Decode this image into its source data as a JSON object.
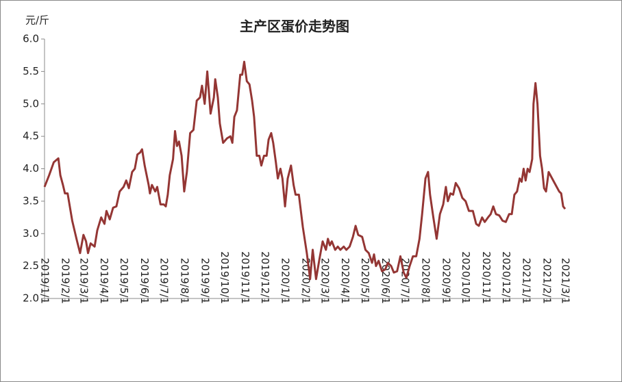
{
  "chart_data": {
    "type": "line",
    "title": "主产区蛋价走势图",
    "y_label": "元/斤",
    "x": [
      "2019/1/1",
      "2019/1/8",
      "2019/1/15",
      "2019/1/22",
      "2019/1/25",
      "2019/1/29",
      "2019/2/1",
      "2019/2/5",
      "2019/2/12",
      "2019/2/19",
      "2019/2/24",
      "2019/3/1",
      "2019/3/5",
      "2019/3/8",
      "2019/3/12",
      "2019/3/18",
      "2019/3/22",
      "2019/3/28",
      "2019/4/2",
      "2019/4/5",
      "2019/4/10",
      "2019/4/15",
      "2019/4/20",
      "2019/4/25",
      "2019/5/1",
      "2019/5/5",
      "2019/5/9",
      "2019/5/14",
      "2019/5/18",
      "2019/5/22",
      "2019/5/26",
      "2019/5/29",
      "2019/6/2",
      "2019/6/8",
      "2019/6/10",
      "2019/6/13",
      "2019/6/18",
      "2019/6/21",
      "2019/6/26",
      "2019/7/1",
      "2019/7/4",
      "2019/7/7",
      "2019/7/10",
      "2019/7/15",
      "2019/7/18",
      "2019/7/21",
      "2019/7/24",
      "2019/7/28",
      "2019/8/1",
      "2019/8/5",
      "2019/8/10",
      "2019/8/15",
      "2019/8/20",
      "2019/8/25",
      "2019/8/28",
      "2019/9/1",
      "2019/9/5",
      "2019/9/10",
      "2019/9/15",
      "2019/9/17",
      "2019/9/21",
      "2019/9/24",
      "2019/9/29",
      "2019/10/5",
      "2019/10/10",
      "2019/10/13",
      "2019/10/16",
      "2019/10/20",
      "2019/10/25",
      "2019/10/28",
      "2019/10/31",
      "2019/11/4",
      "2019/11/8",
      "2019/11/12",
      "2019/11/15",
      "2019/11/19",
      "2019/11/23",
      "2019/11/26",
      "2019/11/30",
      "2019/12/4",
      "2019/12/7",
      "2019/12/11",
      "2019/12/14",
      "2019/12/18",
      "2019/12/21",
      "2019/12/25",
      "2019/12/28",
      "2020/1/1",
      "2020/1/5",
      "2020/1/10",
      "2020/1/14",
      "2020/1/17",
      "2020/1/22",
      "2020/1/28",
      "2020/2/3",
      "2020/2/8",
      "2020/2/12",
      "2020/2/17",
      "2020/2/22",
      "2020/2/27",
      "2020/3/3",
      "2020/3/6",
      "2020/3/9",
      "2020/3/12",
      "2020/3/17",
      "2020/3/21",
      "2020/3/25",
      "2020/3/30",
      "2020/4/3",
      "2020/4/8",
      "2020/4/13",
      "2020/4/17",
      "2020/4/21",
      "2020/4/27",
      "2020/5/2",
      "2020/5/7",
      "2020/5/12",
      "2020/5/15",
      "2020/5/18",
      "2020/5/22",
      "2020/5/27",
      "2020/6/1",
      "2020/6/5",
      "2020/6/10",
      "2020/6/14",
      "2020/6/19",
      "2020/6/24",
      "2020/6/29",
      "2020/7/3",
      "2020/7/8",
      "2020/7/13",
      "2020/7/18",
      "2020/7/23",
      "2020/7/27",
      "2020/8/1",
      "2020/8/5",
      "2020/8/8",
      "2020/8/13",
      "2020/8/18",
      "2020/8/23",
      "2020/8/28",
      "2020/9/1",
      "2020/9/4",
      "2020/9/8",
      "2020/9/12",
      "2020/9/16",
      "2020/9/21",
      "2020/9/26",
      "2020/10/1",
      "2020/10/6",
      "2020/10/12",
      "2020/10/17",
      "2020/10/21",
      "2020/10/26",
      "2020/10/30",
      "2020/11/4",
      "2020/11/8",
      "2020/11/12",
      "2020/11/16",
      "2020/11/21",
      "2020/11/26",
      "2020/12/1",
      "2020/12/6",
      "2020/12/10",
      "2020/12/14",
      "2020/12/18",
      "2020/12/22",
      "2020/12/25",
      "2020/12/28",
      "2020/12/31",
      "2021/1/3",
      "2021/1/6",
      "2021/1/10",
      "2021/1/12",
      "2021/1/15",
      "2021/1/18",
      "2021/1/20",
      "2021/1/22",
      "2021/1/25",
      "2021/1/28",
      "2021/1/31",
      "2021/2/4",
      "2021/2/12",
      "2021/2/20",
      "2021/2/23",
      "2021/2/26",
      "2021/3/1"
    ],
    "series": [
      {
        "name": "蛋价",
        "color": "#943634",
        "values": [
          3.72,
          3.9,
          4.1,
          4.16,
          3.9,
          3.75,
          3.62,
          3.62,
          3.2,
          2.9,
          2.7,
          2.98,
          2.88,
          2.7,
          2.85,
          2.8,
          3.05,
          3.25,
          3.15,
          3.35,
          3.22,
          3.4,
          3.42,
          3.65,
          3.72,
          3.82,
          3.7,
          3.95,
          4.0,
          4.22,
          4.25,
          4.3,
          4.05,
          3.75,
          3.62,
          3.75,
          3.65,
          3.72,
          3.45,
          3.45,
          3.42,
          3.6,
          3.9,
          4.15,
          4.58,
          4.35,
          4.42,
          4.2,
          3.65,
          3.95,
          4.55,
          4.6,
          5.05,
          5.1,
          5.28,
          5.0,
          5.5,
          4.85,
          5.1,
          5.38,
          5.1,
          4.7,
          4.4,
          4.47,
          4.5,
          4.4,
          4.8,
          4.9,
          5.45,
          5.45,
          5.65,
          5.35,
          5.3,
          5.05,
          4.8,
          4.2,
          4.2,
          4.05,
          4.2,
          4.2,
          4.45,
          4.55,
          4.4,
          4.1,
          3.85,
          4.0,
          3.85,
          3.42,
          3.85,
          4.05,
          3.75,
          3.6,
          3.6,
          3.1,
          2.7,
          2.3,
          2.75,
          2.3,
          2.6,
          2.88,
          2.75,
          2.92,
          2.82,
          2.88,
          2.75,
          2.8,
          2.75,
          2.8,
          2.75,
          2.8,
          2.95,
          3.12,
          2.98,
          2.95,
          2.75,
          2.7,
          2.55,
          2.68,
          2.5,
          2.58,
          2.42,
          2.45,
          2.55,
          2.5,
          2.4,
          2.42,
          2.65,
          2.4,
          2.32,
          2.5,
          2.65,
          2.65,
          2.92,
          3.3,
          3.85,
          3.95,
          3.6,
          3.25,
          2.92,
          3.3,
          3.45,
          3.72,
          3.5,
          3.62,
          3.6,
          3.78,
          3.7,
          3.55,
          3.5,
          3.35,
          3.35,
          3.15,
          3.12,
          3.25,
          3.18,
          3.25,
          3.3,
          3.42,
          3.3,
          3.28,
          3.2,
          3.18,
          3.3,
          3.3,
          3.6,
          3.65,
          3.85,
          3.8,
          4.0,
          3.82,
          4.0,
          3.95,
          4.15,
          5.0,
          5.32,
          5.0,
          4.6,
          4.2,
          4.0,
          3.7,
          3.65,
          3.95,
          3.8,
          3.65,
          3.62,
          3.42,
          3.38
        ]
      }
    ],
    "ylim": [
      2,
      6
    ],
    "yticks": [
      {
        "value": 2,
        "label": "2.0"
      },
      2.5,
      {
        "value": 3,
        "label": "3.0"
      },
      3.5,
      {
        "value": 4,
        "label": "4.0"
      },
      4.5,
      {
        "value": 5,
        "label": "5.0"
      },
      5.5,
      {
        "value": 6,
        "label": "6.0"
      }
    ],
    "xlim": [
      "2019/1/1",
      "2021/3/1"
    ],
    "xticks": [
      "2019/1/1",
      "2019/2/1",
      "2019/3/1",
      "2019/4/1",
      "2019/5/1",
      "2019/6/1",
      "2019/7/1",
      "2019/8/1",
      "2019/9/1",
      "2019/10/1",
      "2019/11/1",
      "2019/12/1",
      "2020/1/1",
      "2020/2/1",
      "2020/3/1",
      "2020/4/1",
      "2020/5/1",
      "2020/6/1",
      "2020/7/1",
      "2020/8/1",
      "2020/9/1",
      "2020/10/1",
      "2020/11/1",
      "2020/12/1",
      "2021/1/1",
      "2021/2/1",
      "2021/3/1"
    ],
    "grid": false
  }
}
